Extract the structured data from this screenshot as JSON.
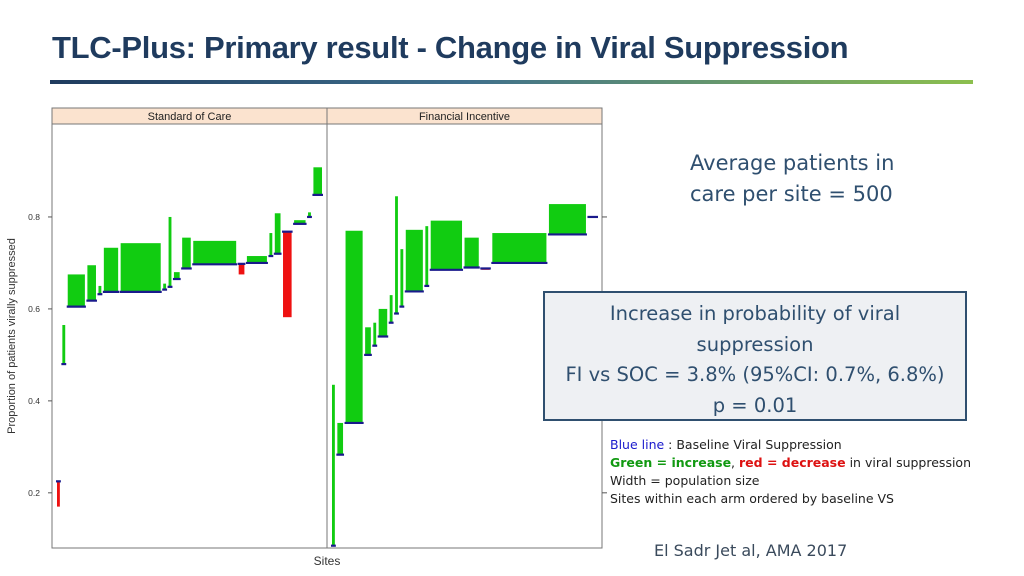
{
  "title": "TLC-Plus: Primary result - Change in Viral Suppression",
  "avg_note": {
    "line1": "Average patients in",
    "line2": "care per site = 500"
  },
  "result_box": {
    "line1": "Increase in probability of viral",
    "line2": "suppression",
    "line3": "FI vs SOC = 3.8% (95%CI: 0.7%, 6.8%)",
    "line4": "p = 0.01"
  },
  "legend_notes": {
    "blue_line": "Blue line",
    "blue_line_rest": " : Baseline Viral Suppression",
    "green": "Green = increase",
    "comma": ", ",
    "red": "red = decrease",
    "red_rest": " in viral suppression",
    "width": "Width = population size",
    "sites": "Sites within each arm ordered by baseline VS"
  },
  "citation": "El Sadr Jet al, AMA 2017",
  "colors": {
    "increase": "#11cc11",
    "decrease": "#ee1111",
    "baseline": "#1a1a8c",
    "strip": "#fbe3cf"
  },
  "chart_data": {
    "type": "bar",
    "xlabel": "Sites",
    "ylabel": "Proportion of patients virally suppressed",
    "ylim": [
      0.08,
      1.0
    ],
    "yticks": [
      0.2,
      0.4,
      0.6,
      0.8
    ],
    "ytick_labels": [
      "0.2",
      "0.4",
      "0.6",
      "0.8"
    ],
    "grid": false,
    "panels": [
      {
        "name": "Standard of Care",
        "sites": [
          {
            "baseline": 0.225,
            "followup": 0.17,
            "size": 1
          },
          {
            "baseline": 0.48,
            "followup": 0.565,
            "size": 1
          },
          {
            "baseline": 0.605,
            "followup": 0.675,
            "size": 6
          },
          {
            "baseline": 0.618,
            "followup": 0.695,
            "size": 3
          },
          {
            "baseline": 0.632,
            "followup": 0.65,
            "size": 1
          },
          {
            "baseline": 0.637,
            "followup": 0.733,
            "size": 5
          },
          {
            "baseline": 0.637,
            "followup": 0.743,
            "size": 14
          },
          {
            "baseline": 0.642,
            "followup": 0.655,
            "size": 1
          },
          {
            "baseline": 0.648,
            "followup": 0.8,
            "size": 1
          },
          {
            "baseline": 0.665,
            "followup": 0.68,
            "size": 2
          },
          {
            "baseline": 0.688,
            "followup": 0.755,
            "size": 3
          },
          {
            "baseline": 0.697,
            "followup": 0.748,
            "size": 15
          },
          {
            "baseline": 0.698,
            "followup": 0.675,
            "size": 2
          },
          {
            "baseline": 0.7,
            "followup": 0.715,
            "size": 7
          },
          {
            "baseline": 0.715,
            "followup": 0.765,
            "size": 1
          },
          {
            "baseline": 0.72,
            "followup": 0.808,
            "size": 2
          },
          {
            "baseline": 0.768,
            "followup": 0.582,
            "size": 3
          },
          {
            "baseline": 0.785,
            "followup": 0.793,
            "size": 4
          },
          {
            "baseline": 0.8,
            "followup": 0.81,
            "size": 1
          },
          {
            "baseline": 0.848,
            "followup": 0.908,
            "size": 3
          }
        ]
      },
      {
        "name": "Financial Incentive",
        "sites": [
          {
            "baseline": 0.085,
            "followup": 0.435,
            "size": 1
          },
          {
            "baseline": 0.283,
            "followup": 0.352,
            "size": 2
          },
          {
            "baseline": 0.352,
            "followup": 0.77,
            "size": 6
          },
          {
            "baseline": 0.5,
            "followup": 0.56,
            "size": 2
          },
          {
            "baseline": 0.52,
            "followup": 0.57,
            "size": 1
          },
          {
            "baseline": 0.54,
            "followup": 0.6,
            "size": 3
          },
          {
            "baseline": 0.57,
            "followup": 0.63,
            "size": 1
          },
          {
            "baseline": 0.59,
            "followup": 0.845,
            "size": 1
          },
          {
            "baseline": 0.605,
            "followup": 0.73,
            "size": 1
          },
          {
            "baseline": 0.638,
            "followup": 0.772,
            "size": 6
          },
          {
            "baseline": 0.65,
            "followup": 0.78,
            "size": 1
          },
          {
            "baseline": 0.685,
            "followup": 0.792,
            "size": 11
          },
          {
            "baseline": 0.69,
            "followup": 0.755,
            "size": 5
          },
          {
            "baseline": 0.688,
            "followup": 0.685,
            "size": 3
          },
          {
            "baseline": 0.7,
            "followup": 0.765,
            "size": 19
          },
          {
            "baseline": 0.762,
            "followup": 0.828,
            "size": 13
          },
          {
            "baseline": 0.8,
            "followup": 0.8,
            "size": 3
          }
        ]
      }
    ]
  }
}
